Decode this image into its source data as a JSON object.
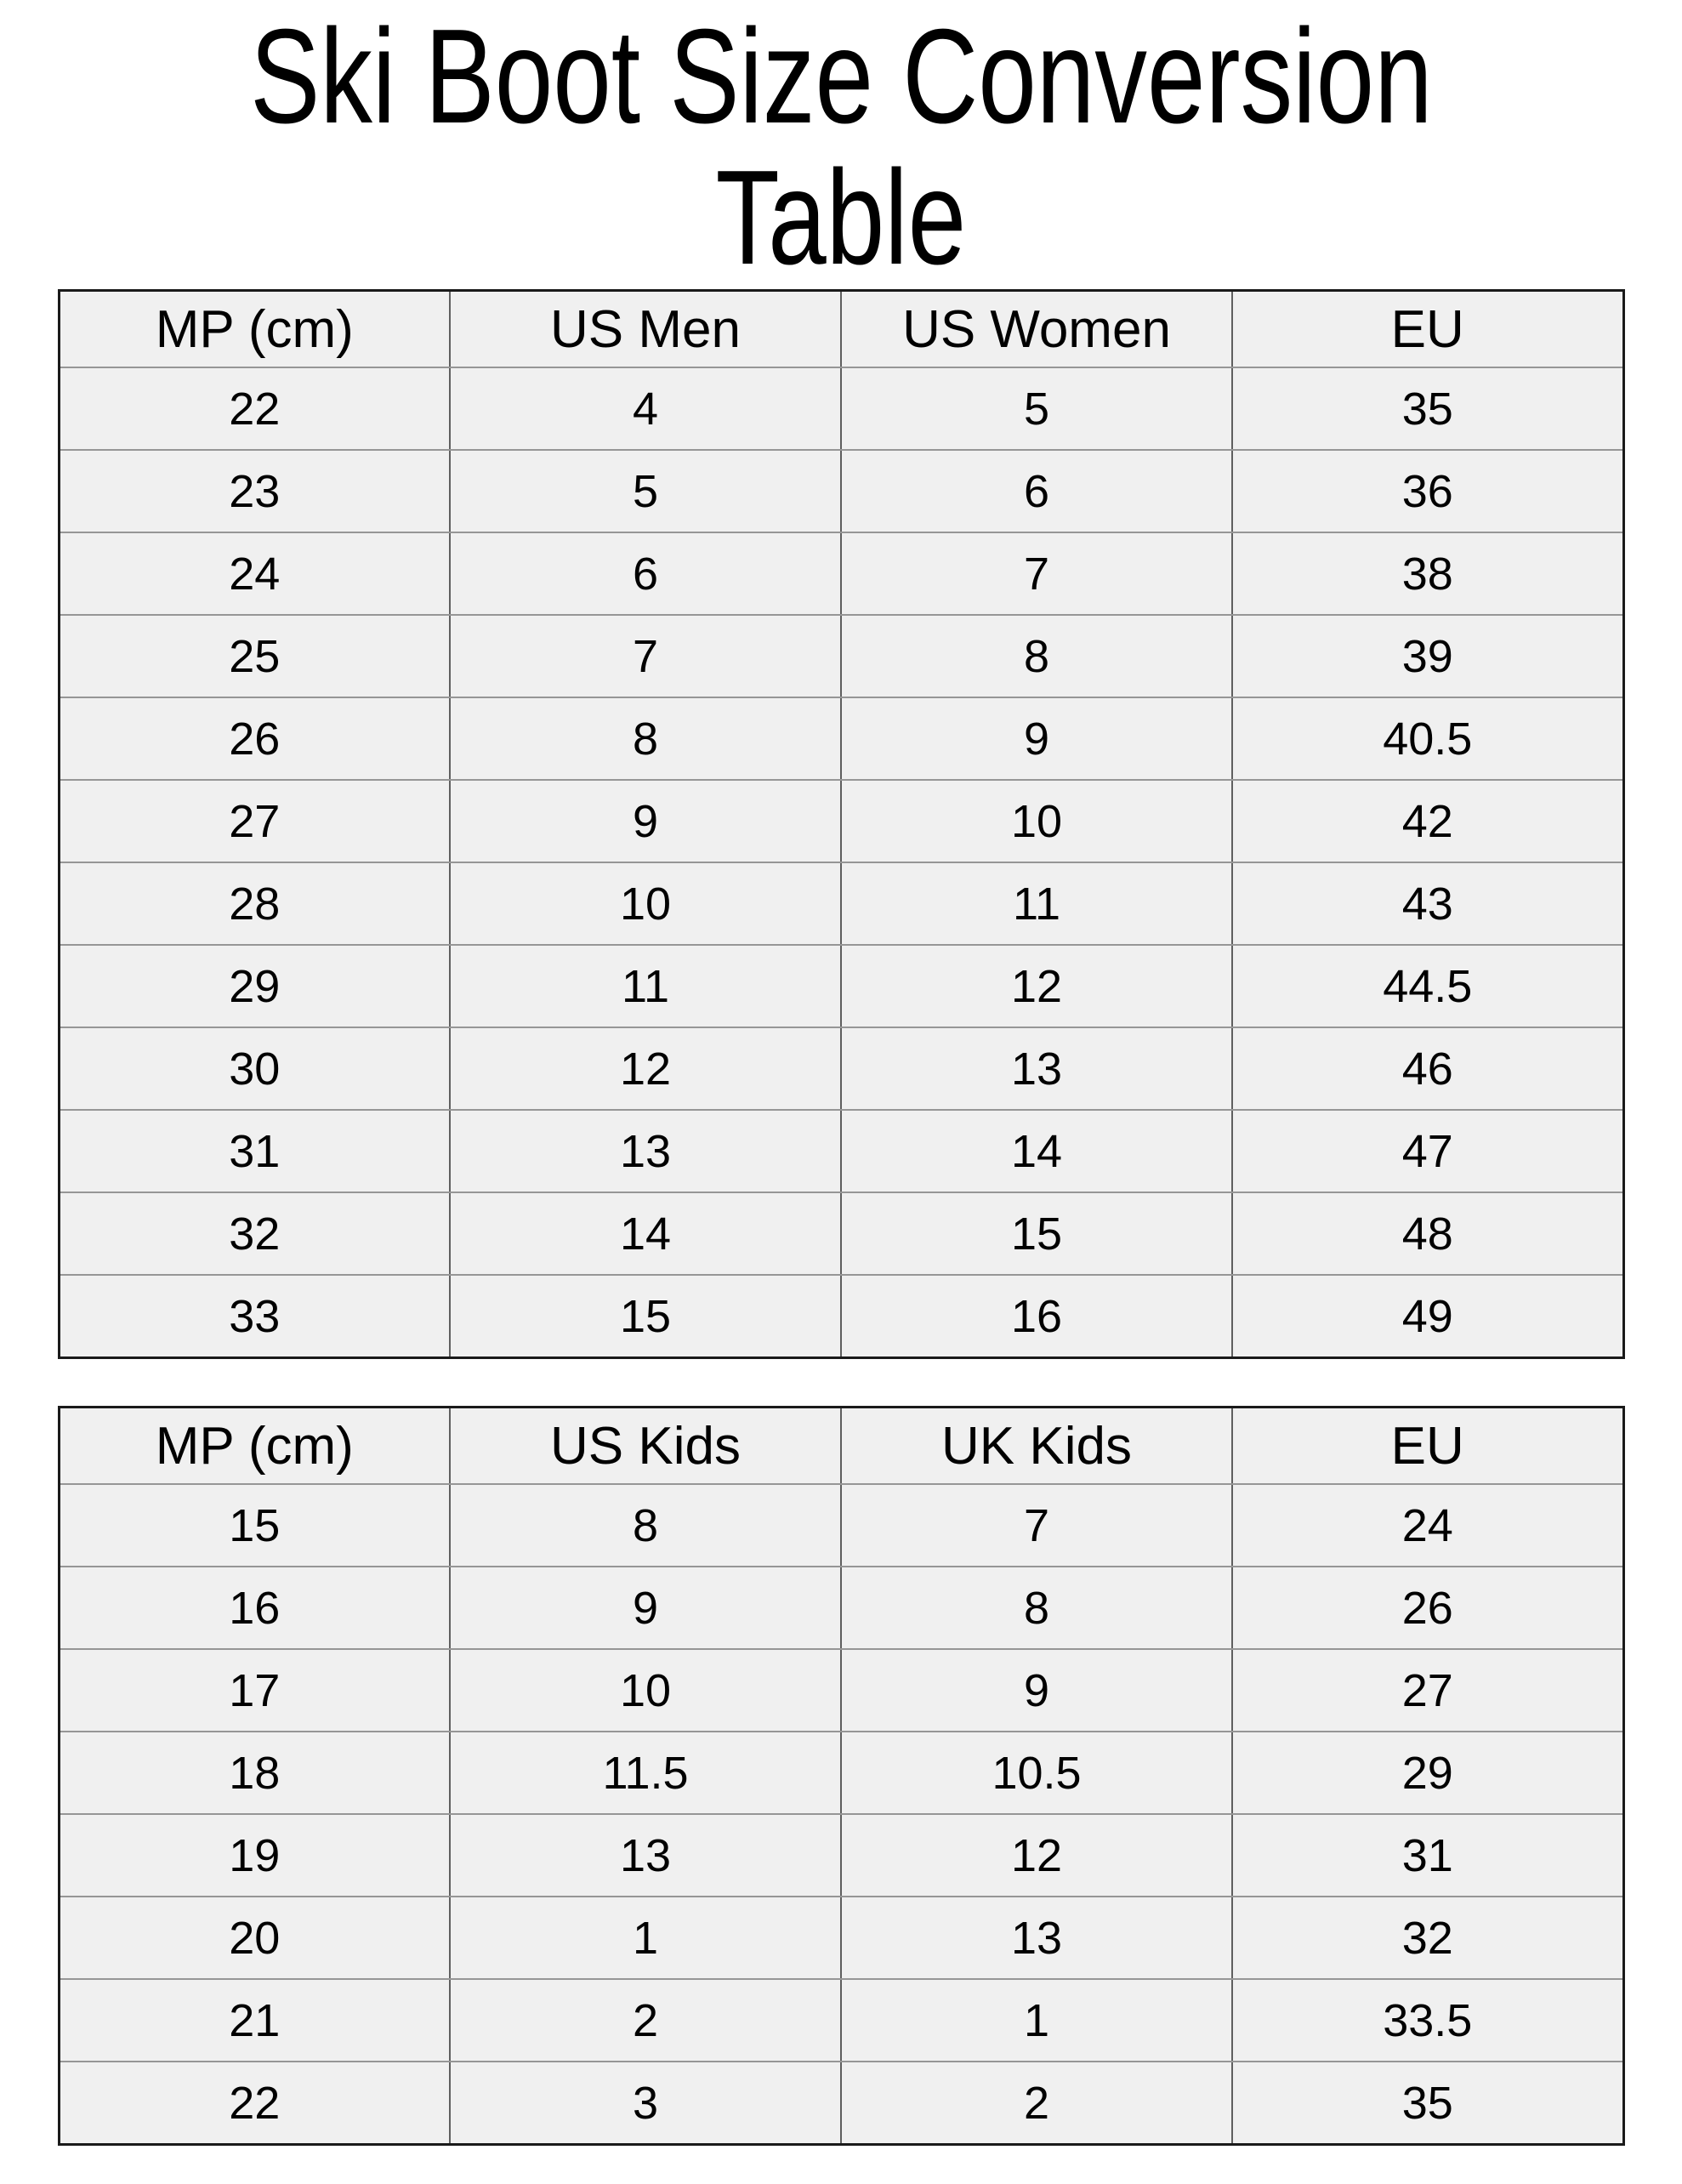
{
  "page": {
    "title": "Ski Boot Size Conversion Table",
    "title_lines": [
      "Ski Boot Size Conversion",
      "Table"
    ]
  },
  "colors": {
    "page_bg": "#ffffff",
    "text": "#000000",
    "cell_bg": "#f0f0f0",
    "border_outer": "#1a1a1a",
    "border_h": "#969696",
    "border_v": "#5f5f5f"
  },
  "tables": [
    {
      "name": "adult-ski-boot-sizes",
      "headers": [
        "MP (cm)",
        "US Men",
        "US Women",
        "EU"
      ],
      "rows": [
        [
          "22",
          "4",
          "5",
          "35"
        ],
        [
          "23",
          "5",
          "6",
          "36"
        ],
        [
          "24",
          "6",
          "7",
          "38"
        ],
        [
          "25",
          "7",
          "8",
          "39"
        ],
        [
          "26",
          "8",
          "9",
          "40.5"
        ],
        [
          "27",
          "9",
          "10",
          "42"
        ],
        [
          "28",
          "10",
          "11",
          "43"
        ],
        [
          "29",
          "11",
          "12",
          "44.5"
        ],
        [
          "30",
          "12",
          "13",
          "46"
        ],
        [
          "31",
          "13",
          "14",
          "47"
        ],
        [
          "32",
          "14",
          "15",
          "48"
        ],
        [
          "33",
          "15",
          "16",
          "49"
        ]
      ]
    },
    {
      "name": "kids-ski-boot-sizes",
      "headers": [
        "MP (cm)",
        "US Kids",
        "UK Kids",
        "EU"
      ],
      "rows": [
        [
          "15",
          "8",
          "7",
          "24"
        ],
        [
          "16",
          "9",
          "8",
          "26"
        ],
        [
          "17",
          "10",
          "9",
          "27"
        ],
        [
          "18",
          "11.5",
          "10.5",
          "29"
        ],
        [
          "19",
          "13",
          "12",
          "31"
        ],
        [
          "20",
          "1",
          "13",
          "32"
        ],
        [
          "21",
          "2",
          "1",
          "33.5"
        ],
        [
          "22",
          "3",
          "2",
          "35"
        ]
      ]
    }
  ]
}
